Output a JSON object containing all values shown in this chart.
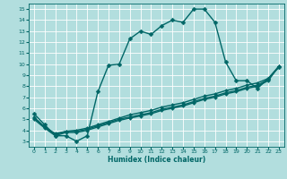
{
  "title": "",
  "xlabel": "Humidex (Indice chaleur)",
  "ylabel": "",
  "xlim": [
    -0.5,
    23.5
  ],
  "ylim": [
    2.5,
    15.5
  ],
  "xticks": [
    0,
    1,
    2,
    3,
    4,
    5,
    6,
    7,
    8,
    9,
    10,
    11,
    12,
    13,
    14,
    15,
    16,
    17,
    18,
    19,
    20,
    21,
    22,
    23
  ],
  "yticks": [
    3,
    4,
    5,
    6,
    7,
    8,
    9,
    10,
    11,
    12,
    13,
    14,
    15
  ],
  "bg_color": "#b2dede",
  "grid_color": "#ffffff",
  "line_color": "#006666",
  "line_width": 1.0,
  "marker": "D",
  "marker_size": 2.5,
  "lines": [
    {
      "x": [
        0,
        1,
        2,
        3,
        4,
        5,
        6,
        7,
        8,
        9,
        10,
        11,
        12,
        13,
        14,
        15,
        16,
        17,
        18,
        19,
        20,
        21,
        22,
        23
      ],
      "y": [
        5.5,
        4.5,
        3.5,
        3.5,
        3.0,
        3.5,
        7.5,
        9.9,
        10.0,
        12.3,
        13.0,
        12.7,
        13.5,
        14.0,
        13.8,
        15.0,
        15.0,
        13.8,
        10.2,
        8.5,
        8.5,
        7.8,
        8.7,
        9.7
      ]
    },
    {
      "x": [
        0,
        1,
        2,
        3,
        4,
        5,
        6,
        7,
        8,
        9,
        10,
        11,
        12,
        13,
        14,
        15,
        16,
        17,
        18,
        19,
        20,
        21,
        22,
        23
      ],
      "y": [
        5.0,
        4.2,
        3.5,
        3.8,
        3.8,
        4.0,
        4.3,
        4.6,
        4.9,
        5.1,
        5.3,
        5.5,
        5.8,
        6.0,
        6.2,
        6.5,
        6.8,
        7.0,
        7.3,
        7.5,
        7.8,
        8.0,
        8.5,
        9.8
      ]
    },
    {
      "x": [
        0,
        1,
        2,
        3,
        4,
        5,
        6,
        7,
        8,
        9,
        10,
        11,
        12,
        13,
        14,
        15,
        16,
        17,
        18,
        19,
        20,
        21,
        22,
        23
      ],
      "y": [
        5.1,
        4.3,
        3.6,
        3.9,
        3.9,
        4.1,
        4.4,
        4.7,
        5.0,
        5.2,
        5.4,
        5.6,
        5.9,
        6.1,
        6.3,
        6.6,
        6.9,
        7.1,
        7.4,
        7.6,
        7.9,
        8.1,
        8.6,
        9.8
      ]
    },
    {
      "x": [
        0,
        1,
        2,
        3,
        4,
        5,
        6,
        7,
        8,
        9,
        10,
        11,
        12,
        13,
        14,
        15,
        16,
        17,
        18,
        19,
        20,
        21,
        22,
        23
      ],
      "y": [
        5.2,
        4.3,
        3.7,
        3.9,
        4.0,
        4.2,
        4.5,
        4.8,
        5.1,
        5.4,
        5.6,
        5.8,
        6.1,
        6.3,
        6.5,
        6.8,
        7.1,
        7.3,
        7.6,
        7.8,
        8.1,
        8.3,
        8.7,
        9.8
      ]
    }
  ]
}
